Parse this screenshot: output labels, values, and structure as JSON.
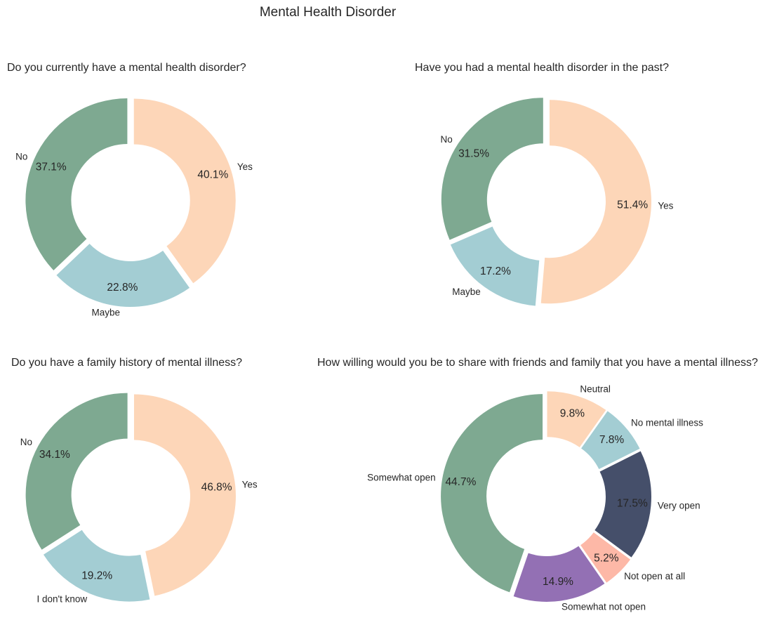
{
  "title": "Mental Health Disorder",
  "chart_data": [
    {
      "type": "pie",
      "style": "donut",
      "title": "Do you currently have a mental health disorder?",
      "labels": [
        "No",
        "Maybe",
        "Yes"
      ],
      "values": [
        37.1,
        22.8,
        40.1
      ],
      "percent_labels": [
        "37.1%",
        "22.8%",
        "40.1%"
      ],
      "colors": [
        "#7ea991",
        "#a3cdd3",
        "#fdd6b8"
      ]
    },
    {
      "type": "pie",
      "style": "donut",
      "title": "Have you had a mental health disorder in the past?",
      "labels": [
        "No",
        "Maybe",
        "Yes"
      ],
      "values": [
        31.5,
        17.2,
        51.4
      ],
      "percent_labels": [
        "31.5%",
        "17.2%",
        "51.4%"
      ],
      "colors": [
        "#7ea991",
        "#a3cdd3",
        "#fdd6b8"
      ]
    },
    {
      "type": "pie",
      "style": "donut",
      "title": "Do you have a family history of mental illness?",
      "labels": [
        "No",
        "I don't know",
        "Yes"
      ],
      "values": [
        34.1,
        19.2,
        46.8
      ],
      "percent_labels": [
        "34.1%",
        "19.2%",
        "46.8%"
      ],
      "colors": [
        "#7ea991",
        "#a3cdd3",
        "#fdd6b8"
      ]
    },
    {
      "type": "pie",
      "style": "donut",
      "title": "How willing would you be to share with friends and family that you have a mental illness?",
      "labels": [
        "Somewhat open",
        "Somewhat not open",
        "Not open at all",
        "Very open",
        "No mental illness",
        "Neutral"
      ],
      "values": [
        44.7,
        14.9,
        5.2,
        17.5,
        7.8,
        9.8
      ],
      "percent_labels": [
        "44.7%",
        "14.9%",
        "5.2%",
        "17.5%",
        "7.8%",
        "9.8%"
      ],
      "colors": [
        "#7ea991",
        "#9370b4",
        "#fdb8a7",
        "#454f6a",
        "#a3cdd3",
        "#fdd6b8"
      ]
    }
  ]
}
